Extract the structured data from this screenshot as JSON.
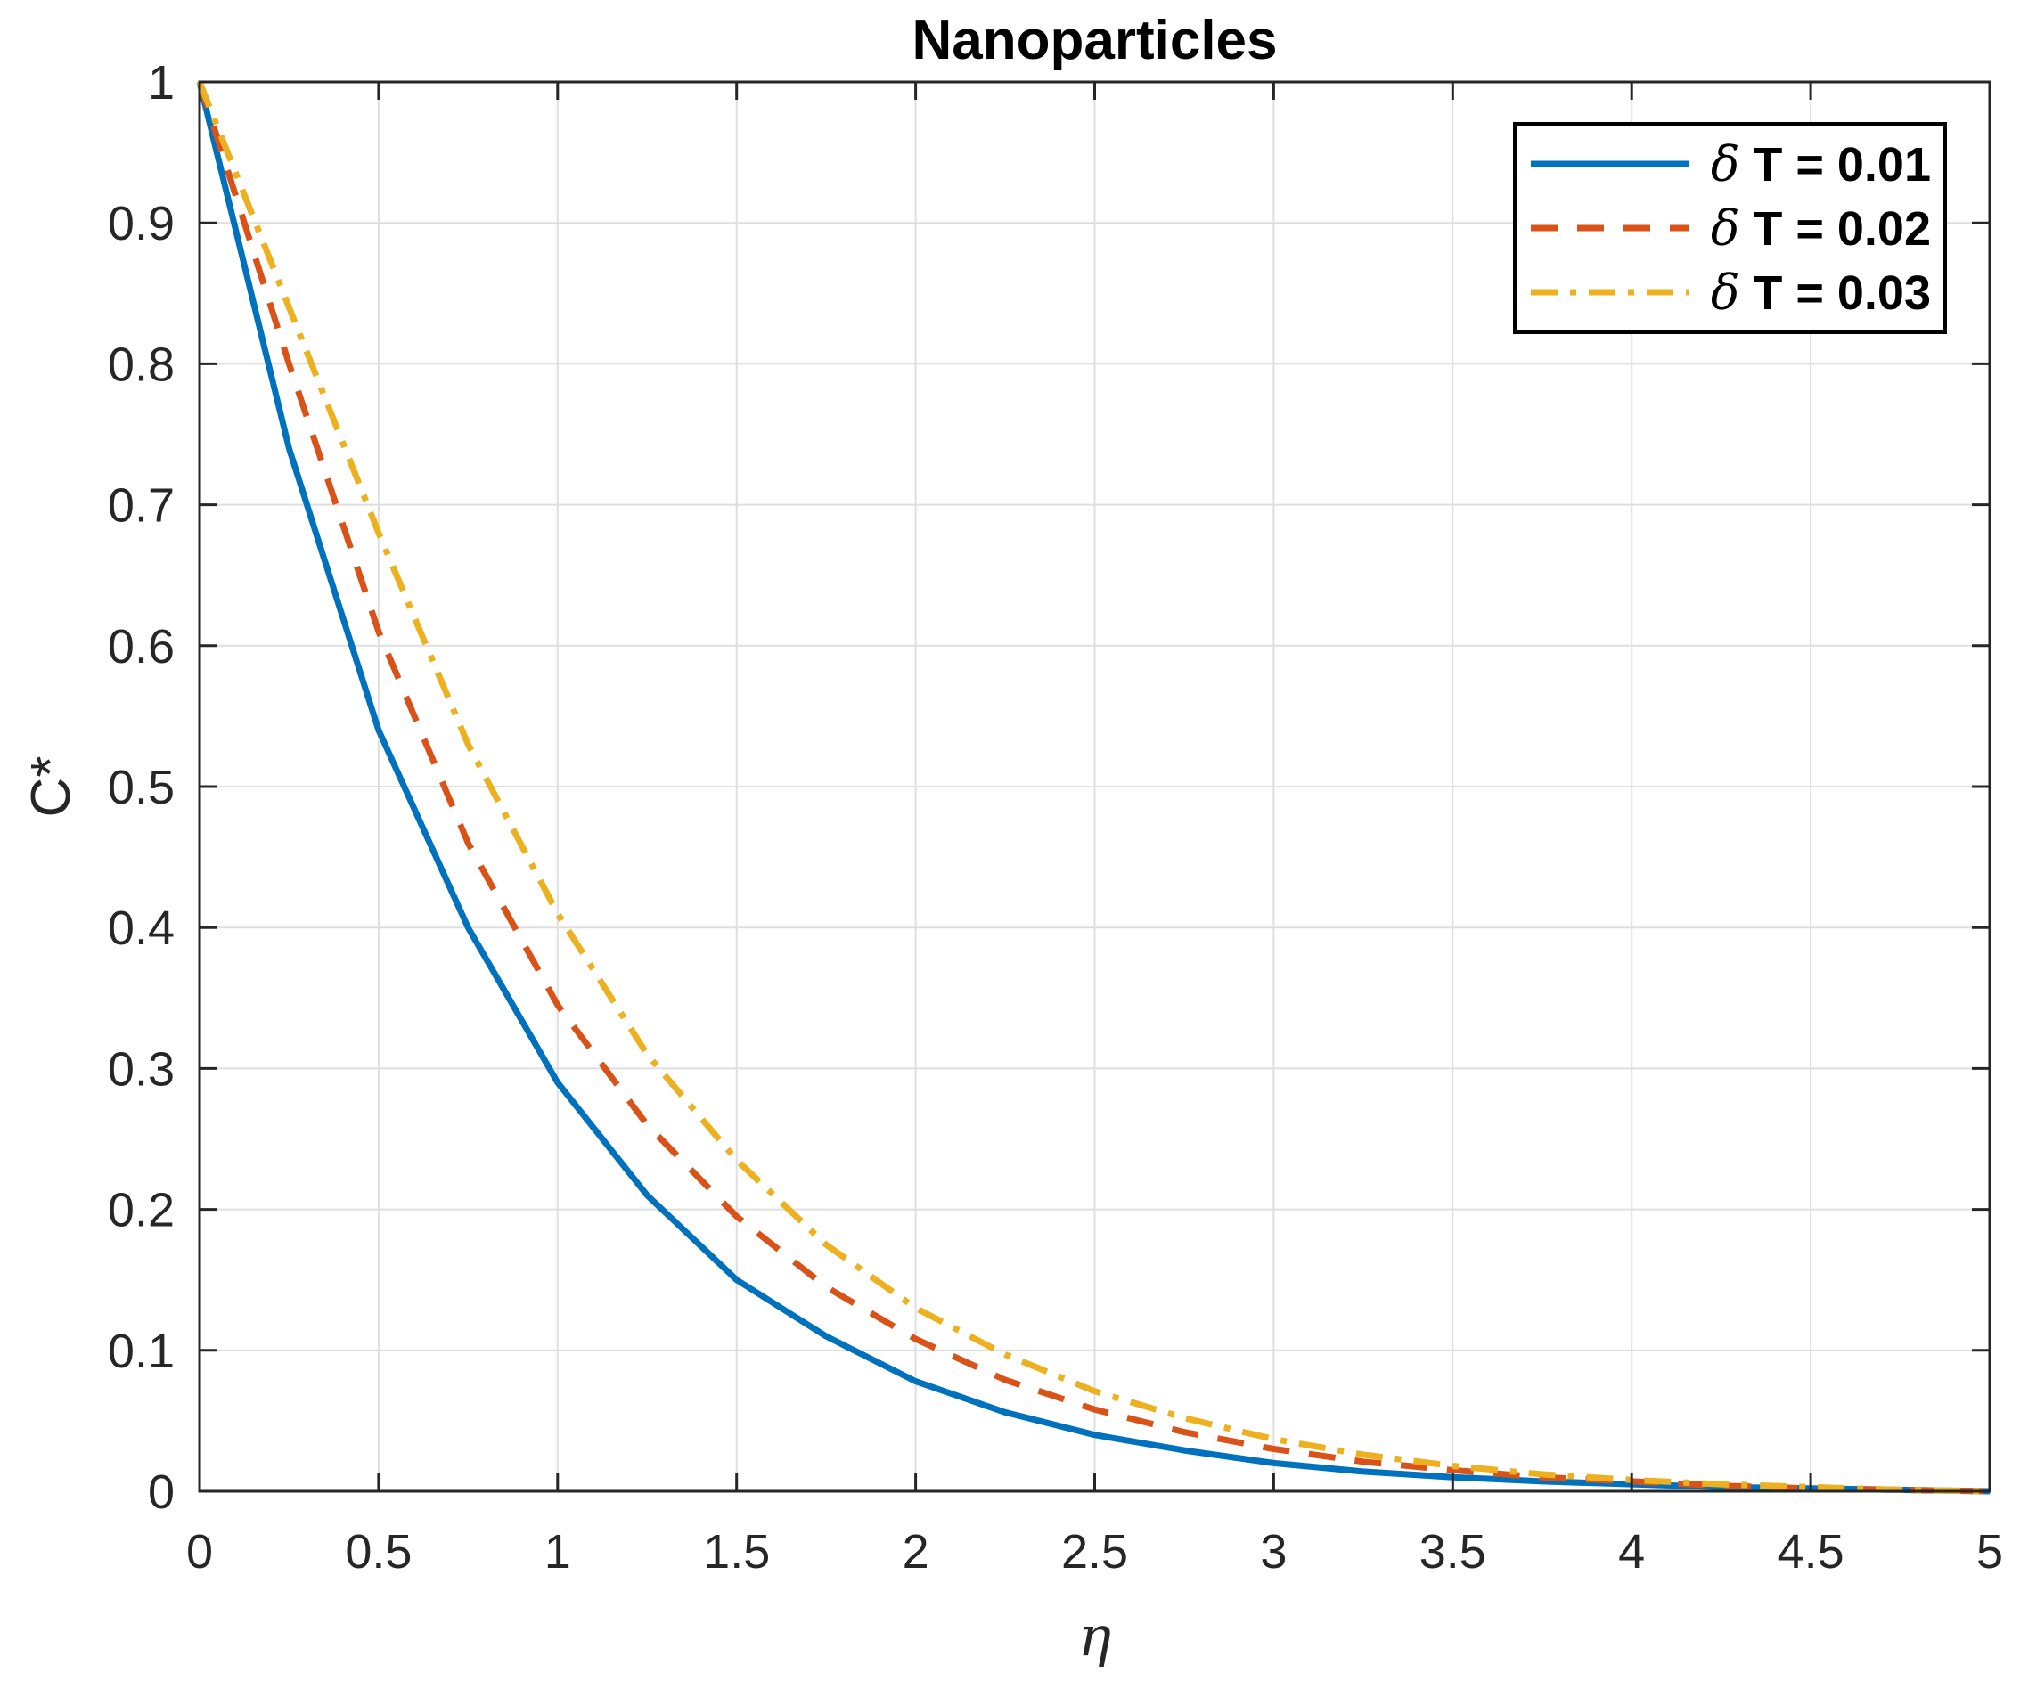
{
  "chart_data": {
    "type": "line",
    "title": "Nanoparticles",
    "xlabel": "η",
    "ylabel": "C*",
    "xlim": [
      0,
      5
    ],
    "ylim": [
      0,
      1
    ],
    "xticks": [
      0,
      0.5,
      1,
      1.5,
      2,
      2.5,
      3,
      3.5,
      4,
      4.5,
      5
    ],
    "xtick_labels": [
      "0",
      "0.5",
      "1",
      "1.5",
      "2",
      "2.5",
      "3",
      "3.5",
      "4",
      "4.5",
      "5"
    ],
    "yticks": [
      0,
      0.1,
      0.2,
      0.3,
      0.4,
      0.5,
      0.6,
      0.7,
      0.8,
      0.9,
      1
    ],
    "ytick_labels": [
      "0",
      "0.1",
      "0.2",
      "0.3",
      "0.4",
      "0.5",
      "0.6",
      "0.7",
      "0.8",
      "0.9",
      "1"
    ],
    "grid": true,
    "legend_position": "top-right",
    "x": [
      0,
      0.25,
      0.5,
      0.75,
      1,
      1.25,
      1.5,
      1.75,
      2,
      2.25,
      2.5,
      2.75,
      3,
      3.25,
      3.5,
      3.75,
      4,
      4.25,
      4.5,
      4.75,
      5
    ],
    "series": [
      {
        "name": "δ T = 0.01",
        "color": "#0072BD",
        "style": "solid",
        "values": [
          1.0,
          0.74,
          0.54,
          0.4,
          0.29,
          0.21,
          0.15,
          0.11,
          0.078,
          0.056,
          0.04,
          0.029,
          0.02,
          0.014,
          0.01,
          0.007,
          0.005,
          0.003,
          0.002,
          0.001,
          0.0
        ]
      },
      {
        "name": "δ T = 0.02",
        "color": "#D95319",
        "style": "dashed",
        "values": [
          1.0,
          0.8,
          0.61,
          0.46,
          0.345,
          0.26,
          0.195,
          0.145,
          0.108,
          0.079,
          0.058,
          0.042,
          0.03,
          0.021,
          0.015,
          0.01,
          0.007,
          0.004,
          0.002,
          0.001,
          0.0
        ]
      },
      {
        "name": "δ T = 0.03",
        "color": "#EDB120",
        "style": "dashdot",
        "values": [
          1.0,
          0.84,
          0.68,
          0.53,
          0.41,
          0.31,
          0.235,
          0.175,
          0.13,
          0.097,
          0.071,
          0.052,
          0.037,
          0.026,
          0.018,
          0.012,
          0.008,
          0.005,
          0.003,
          0.001,
          0.0
        ]
      }
    ]
  }
}
